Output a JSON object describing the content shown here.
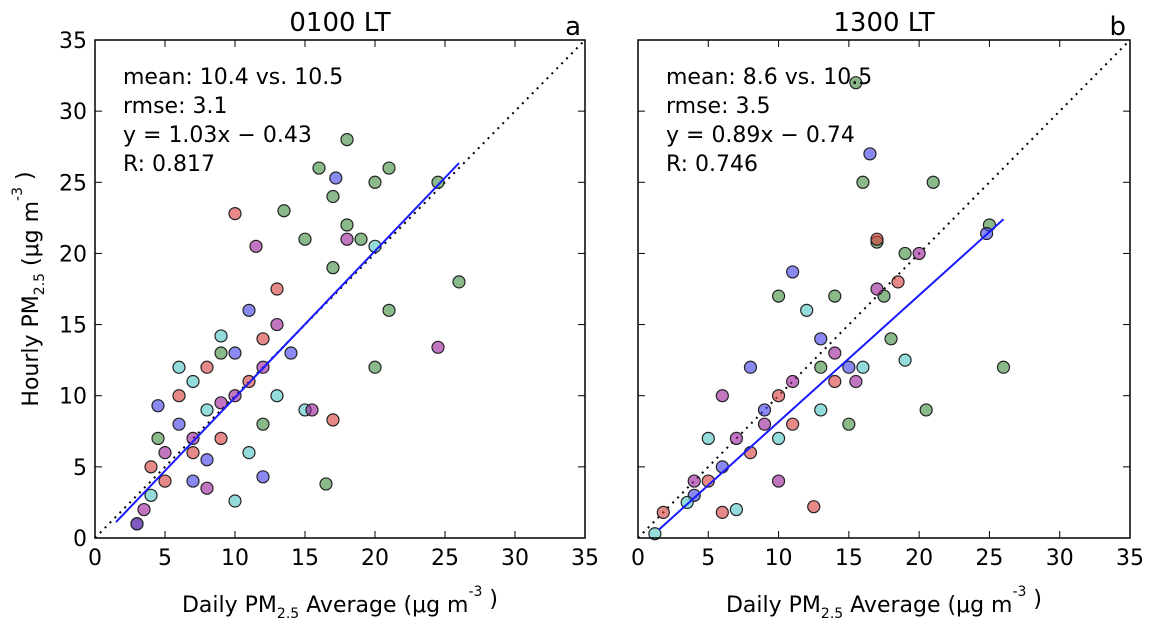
{
  "chart_data": [
    {
      "type": "scatter",
      "title": "0100 LT",
      "panel_label": "a",
      "annotations": [
        "mean: 10.4 vs. 10.5",
        "rmse: 3.1",
        "y = 1.03x − 0.43",
        "R: 0.817"
      ],
      "xlabel": [
        "Daily PM",
        "2.5",
        " Average (μg m",
        "-3",
        " )"
      ],
      "ylabel": [
        "Hourly PM",
        "2.5",
        " (μg m",
        "-3",
        " )"
      ],
      "xlim": [
        0,
        35
      ],
      "ylim": [
        0,
        35
      ],
      "xticks": [
        0,
        5,
        10,
        15,
        20,
        25,
        30,
        35
      ],
      "yticks": [
        0,
        5,
        10,
        15,
        20,
        25,
        30,
        35
      ],
      "ytick_labels": true,
      "reference_line": {
        "x": [
          0,
          35
        ],
        "y": [
          0,
          35
        ]
      },
      "fit_line": {
        "color": "#1a1aff",
        "x": [
          1.5,
          26
        ],
        "y": [
          1.12,
          26.35
        ]
      },
      "series": [
        {
          "color": "#3c8c3c",
          "x": [
            16,
            17,
            18,
            20,
            21,
            24.5,
            26,
            20,
            19,
            15,
            13.5,
            17,
            16.5,
            12,
            9,
            4.5,
            21,
            18
          ],
          "y": [
            26,
            24,
            28,
            25,
            26,
            25,
            18,
            12,
            21,
            21,
            23,
            19,
            3.8,
            8,
            13,
            7,
            16,
            22
          ]
        },
        {
          "color": "#d83a3a",
          "x": [
            10,
            5,
            7,
            8,
            12,
            13,
            17,
            3,
            9,
            11,
            6,
            4
          ],
          "y": [
            22.8,
            4,
            6,
            12,
            14,
            17.5,
            8.3,
            1,
            7,
            11,
            10,
            5
          ]
        },
        {
          "color": "#3a3ae8",
          "x": [
            4.5,
            3,
            17.2,
            10,
            8,
            12,
            14,
            6,
            11,
            7
          ],
          "y": [
            9.3,
            1,
            25.3,
            13,
            5.5,
            4.3,
            13,
            8,
            16,
            4
          ]
        },
        {
          "color": "#4cc4c4",
          "x": [
            10,
            6,
            8,
            11,
            15,
            4,
            13,
            9,
            7,
            20
          ],
          "y": [
            2.6,
            12,
            9,
            6,
            9,
            3,
            10,
            14.2,
            11,
            20.5
          ]
        },
        {
          "color": "#9a1a9a",
          "x": [
            24.5,
            11.5,
            15.5,
            9,
            7,
            13,
            5,
            10,
            18,
            12,
            8,
            3.5
          ],
          "y": [
            13.4,
            20.5,
            9,
            9.5,
            7,
            15,
            6,
            10,
            21,
            12,
            3.5,
            2
          ]
        }
      ]
    },
    {
      "type": "scatter",
      "title": "1300 LT",
      "panel_label": "b",
      "annotations": [
        "mean: 8.6 vs. 10.5",
        "rmse: 3.5",
        "y = 0.89x − 0.74",
        "R: 0.746"
      ],
      "xlabel": [
        "Daily PM",
        "2.5",
        " Average (μg m",
        "-3",
        " )"
      ],
      "xlim": [
        0,
        35
      ],
      "ylim": [
        0,
        35
      ],
      "xticks": [
        0,
        5,
        10,
        15,
        20,
        25,
        30,
        35
      ],
      "yticks": [
        0,
        5,
        10,
        15,
        20,
        25,
        30,
        35
      ],
      "ytick_labels": false,
      "reference_line": {
        "x": [
          0,
          35
        ],
        "y": [
          0,
          35
        ]
      },
      "fit_line": {
        "color": "#1a1aff",
        "x": [
          1.5,
          26
        ],
        "y": [
          0.6,
          22.4
        ]
      },
      "series": [
        {
          "color": "#3c8c3c",
          "x": [
            15.5,
            16,
            17,
            21,
            19,
            25,
            26,
            20.5,
            17.5,
            14,
            10,
            13,
            18,
            15
          ],
          "y": [
            32,
            25,
            20.8,
            25,
            20,
            22,
            12,
            9,
            17,
            17,
            17,
            12,
            14,
            8
          ]
        },
        {
          "color": "#d83a3a",
          "x": [
            1.8,
            6,
            12.5,
            17,
            10,
            8,
            14,
            5,
            11,
            18.5
          ],
          "y": [
            1.8,
            1.8,
            2.2,
            21,
            10,
            6,
            11,
            4,
            8,
            18
          ]
        },
        {
          "color": "#3a3ae8",
          "x": [
            16.5,
            11,
            24.8,
            9,
            6,
            13,
            8,
            15,
            4
          ],
          "y": [
            27,
            18.7,
            21.4,
            9,
            5,
            14,
            12,
            12,
            3
          ]
        },
        {
          "color": "#4cc4c4",
          "x": [
            1.2,
            19,
            7,
            10,
            13,
            16,
            5,
            3.5,
            12
          ],
          "y": [
            0.3,
            12.5,
            2,
            7,
            9,
            12,
            7,
            2.5,
            16
          ]
        },
        {
          "color": "#9a1a9a",
          "x": [
            17,
            20,
            6,
            9,
            11,
            14,
            7,
            4,
            15.5,
            10
          ],
          "y": [
            17.5,
            20,
            10,
            8,
            11,
            13,
            7,
            4,
            11,
            4
          ]
        }
      ]
    }
  ]
}
